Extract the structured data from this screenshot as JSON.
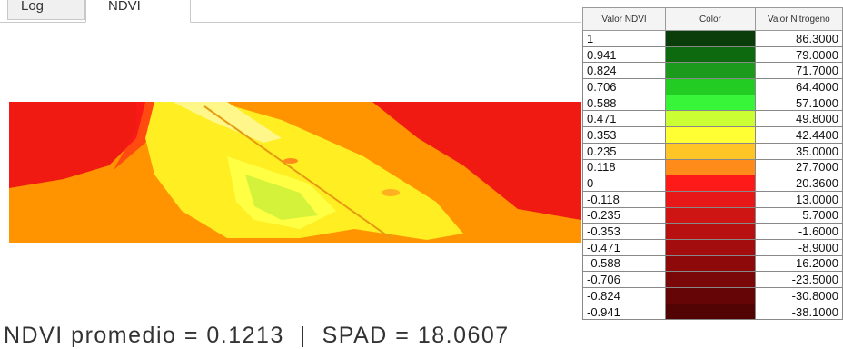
{
  "tabs": [
    "Log",
    "NDVI"
  ],
  "legend": {
    "headers": [
      "Valor NDVI",
      "Color",
      "Valor Nitrogeno"
    ],
    "rows": [
      {
        "ndvi": "1",
        "color": "#0b3d0b",
        "nitrogen": "86.3000"
      },
      {
        "ndvi": "0.941",
        "color": "#0e6a0e",
        "nitrogen": "79.0000"
      },
      {
        "ndvi": "0.824",
        "color": "#1b9a1b",
        "nitrogen": "71.7000"
      },
      {
        "ndvi": "0.706",
        "color": "#22cc22",
        "nitrogen": "64.4000"
      },
      {
        "ndvi": "0.588",
        "color": "#39f539",
        "nitrogen": "57.1000"
      },
      {
        "ndvi": "0.471",
        "color": "#ccff33",
        "nitrogen": "49.8000"
      },
      {
        "ndvi": "0.353",
        "color": "#ffff33",
        "nitrogen": "42.4400"
      },
      {
        "ndvi": "0.235",
        "color": "#ffc526",
        "nitrogen": "35.0000"
      },
      {
        "ndvi": "0.118",
        "color": "#ff8c1a",
        "nitrogen": "27.7000"
      },
      {
        "ndvi": "0",
        "color": "#ff1a1a",
        "nitrogen": "20.3600"
      },
      {
        "ndvi": "-0.118",
        "color": "#e81818",
        "nitrogen": "13.0000"
      },
      {
        "ndvi": "-0.235",
        "color": "#cf1414",
        "nitrogen": "5.7000"
      },
      {
        "ndvi": "-0.353",
        "color": "#b81010",
        "nitrogen": "-1.6000"
      },
      {
        "ndvi": "-0.471",
        "color": "#a30d0d",
        "nitrogen": "-8.9000"
      },
      {
        "ndvi": "-0.588",
        "color": "#8e0a0a",
        "nitrogen": "-16.2000"
      },
      {
        "ndvi": "-0.706",
        "color": "#7a0808",
        "nitrogen": "-23.5000"
      },
      {
        "ndvi": "-0.824",
        "color": "#650505",
        "nitrogen": "-30.8000"
      },
      {
        "ndvi": "-0.941",
        "color": "#520303",
        "nitrogen": "-38.1000"
      }
    ]
  },
  "status": "NDVI promedio = 0.1213  |  SPAD = 18.0607"
}
